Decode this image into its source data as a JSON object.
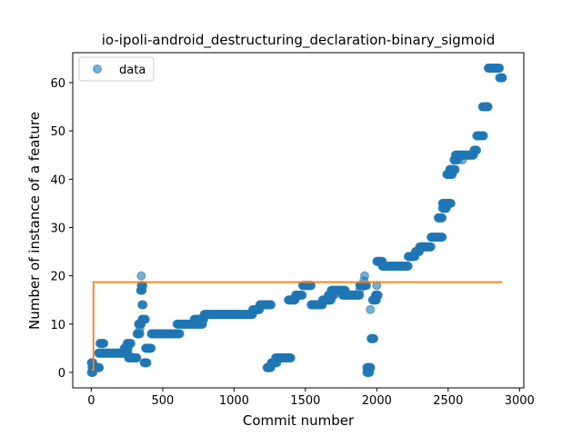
{
  "chart_data": {
    "type": "scatter",
    "title": "io-ipoli-android_destructuring_declaration-binary_sigmoid",
    "xlabel": "Commit number",
    "ylabel": "Number of instance of a feature",
    "xlim": [
      -130,
      3030
    ],
    "ylim": [
      -3.2,
      66.2
    ],
    "xticks": [
      0,
      500,
      1000,
      1500,
      2000,
      2500,
      3000
    ],
    "yticks": [
      0,
      10,
      20,
      30,
      40,
      50,
      60
    ],
    "grid": false,
    "legend": {
      "placement": "top-left",
      "entries": [
        "data"
      ]
    },
    "colors": {
      "data": "#1f77b4",
      "fit": "#ff7f0e"
    },
    "series": [
      {
        "name": "data",
        "kind": "scatter",
        "segments": [
          [
            0,
            15,
            0
          ],
          [
            0,
            15,
            2
          ],
          [
            5,
            60,
            1
          ],
          [
            50,
            260,
            4
          ],
          [
            60,
            90,
            6
          ],
          [
            230,
            260,
            5
          ],
          [
            250,
            280,
            6
          ],
          [
            260,
            320,
            3
          ],
          [
            320,
            340,
            8
          ],
          [
            330,
            350,
            10
          ],
          [
            345,
            360,
            17
          ],
          [
            350,
            365,
            18
          ],
          [
            355,
            365,
            14
          ],
          [
            355,
            380,
            11
          ],
          [
            370,
            390,
            2
          ],
          [
            380,
            420,
            5
          ],
          [
            420,
            620,
            8
          ],
          [
            600,
            780,
            10
          ],
          [
            720,
            790,
            11
          ],
          [
            790,
            1130,
            12
          ],
          [
            1130,
            1180,
            13
          ],
          [
            1180,
            1260,
            14
          ],
          [
            1230,
            1260,
            1
          ],
          [
            1260,
            1300,
            2
          ],
          [
            1290,
            1400,
            3
          ],
          [
            1380,
            1430,
            15
          ],
          [
            1430,
            1480,
            16
          ],
          [
            1480,
            1540,
            18
          ],
          [
            1540,
            1620,
            14
          ],
          [
            1620,
            1680,
            15
          ],
          [
            1660,
            1700,
            16
          ],
          [
            1680,
            1780,
            17
          ],
          [
            1760,
            1880,
            16
          ],
          [
            1880,
            1930,
            18
          ],
          [
            1930,
            1950,
            0
          ],
          [
            1930,
            1960,
            1
          ],
          [
            1960,
            1980,
            7
          ],
          [
            1970,
            2000,
            15
          ],
          [
            1990,
            2010,
            16
          ],
          [
            2000,
            2040,
            23
          ],
          [
            2040,
            2220,
            22
          ],
          [
            2220,
            2270,
            24
          ],
          [
            2270,
            2300,
            25
          ],
          [
            2300,
            2380,
            26
          ],
          [
            2380,
            2460,
            28
          ],
          [
            2430,
            2460,
            32
          ],
          [
            2460,
            2490,
            34
          ],
          [
            2460,
            2520,
            35
          ],
          [
            2490,
            2530,
            41
          ],
          [
            2510,
            2550,
            42
          ],
          [
            2540,
            2570,
            44
          ],
          [
            2550,
            2590,
            45
          ],
          [
            2570,
            2680,
            45
          ],
          [
            2680,
            2700,
            46
          ],
          [
            2700,
            2750,
            49
          ],
          [
            2740,
            2780,
            55
          ],
          [
            2780,
            2860,
            63
          ],
          [
            2860,
            2880,
            61
          ]
        ],
        "points": [
          [
            350,
            20
          ],
          [
            1910,
            19
          ],
          [
            1915,
            20
          ],
          [
            1955,
            13
          ],
          [
            340,
            9
          ],
          [
            1880,
            17
          ],
          [
            2440,
            32
          ],
          [
            2470,
            35
          ],
          [
            2600,
            44
          ],
          [
            2880,
            61
          ],
          [
            2040,
            22
          ],
          [
            2000,
            18
          ]
        ]
      },
      {
        "name": "",
        "kind": "line",
        "x": [
          0,
          15,
          15,
          2880
        ],
        "y": [
          0.5,
          0.5,
          18.7,
          18.7
        ]
      }
    ]
  }
}
